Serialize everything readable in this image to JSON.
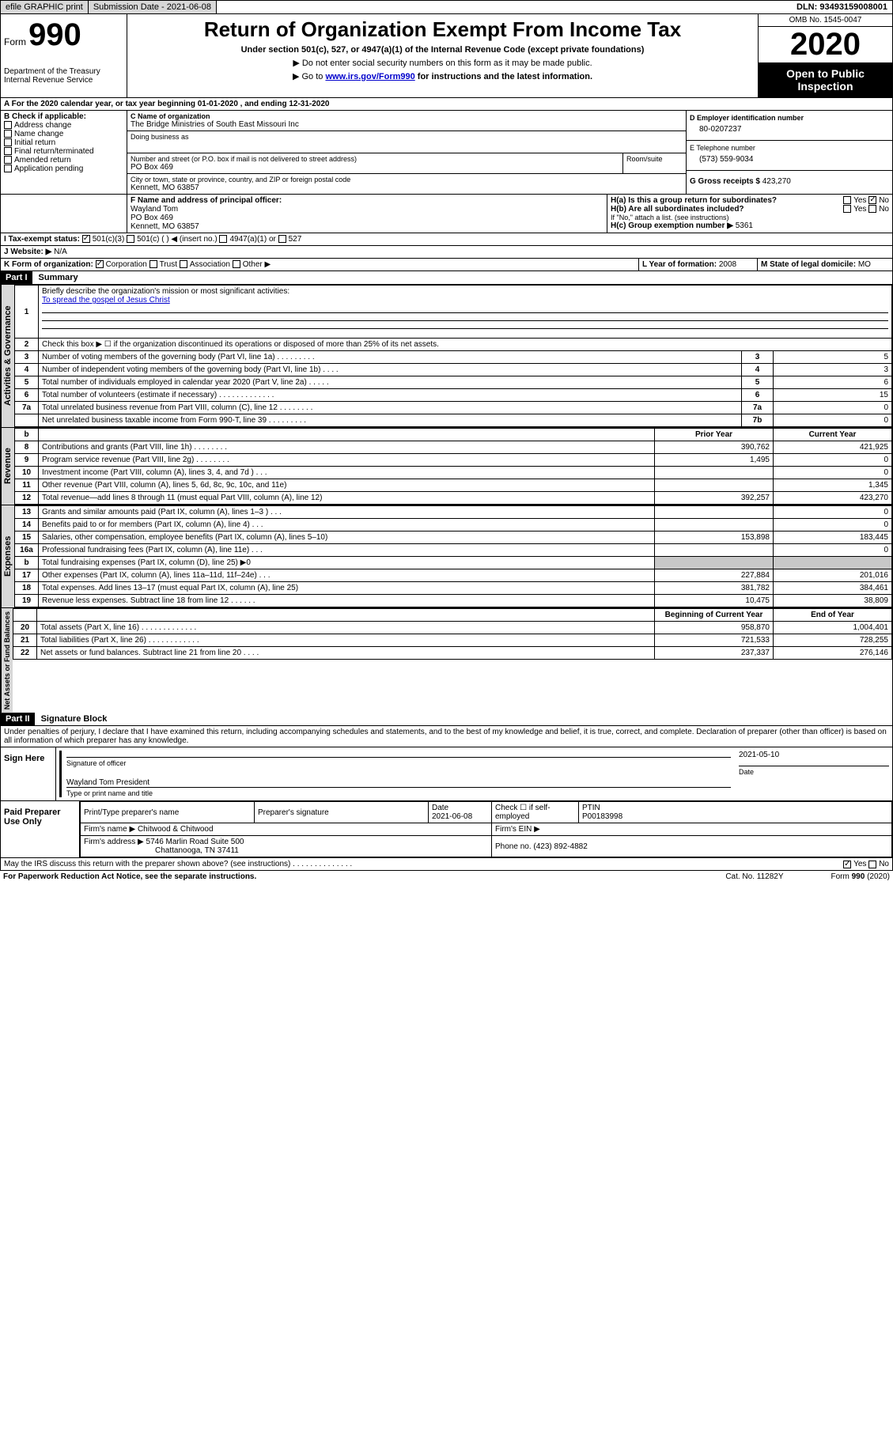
{
  "topbar": {
    "btn1": "efile GRAPHIC print",
    "btn2": "Submission Date - 2021-06-08",
    "dln": "DLN: 93493159008001"
  },
  "header": {
    "form_label": "Form",
    "form_number": "990",
    "dept1": "Department of the Treasury",
    "dept2": "Internal Revenue Service",
    "title": "Return of Organization Exempt From Income Tax",
    "subtitle": "Under section 501(c), 527, or 4947(a)(1) of the Internal Revenue Code (except private foundations)",
    "note1": "Do not enter social security numbers on this form as it may be made public.",
    "note2_pre": "Go to ",
    "note2_link": "www.irs.gov/Form990",
    "note2_post": " for instructions and the latest information.",
    "omb": "OMB No. 1545-0047",
    "year": "2020",
    "inspect": "Open to Public Inspection"
  },
  "periodA": "For the 2020 calendar year, or tax year beginning 01-01-2020    , and ending 12-31-2020",
  "boxB": {
    "label": "B Check if applicable:",
    "opts": [
      "Address change",
      "Name change",
      "Initial return",
      "Final return/terminated",
      "Amended return",
      "Application pending"
    ]
  },
  "boxC": {
    "label": "C Name of organization",
    "name": "The Bridge Ministries of South East Missouri Inc",
    "dba_label": "Doing business as",
    "addr_label": "Number and street (or P.O. box if mail is not delivered to street address)",
    "room_label": "Room/suite",
    "addr": "PO Box 469",
    "city_label": "City or town, state or province, country, and ZIP or foreign postal code",
    "city": "Kennett, MO  63857"
  },
  "boxD": {
    "label": "D Employer identification number",
    "value": "80-0207237"
  },
  "boxE": {
    "label": "E Telephone number",
    "value": "(573) 559-9034"
  },
  "boxG": {
    "label": "G Gross receipts $",
    "value": "423,270"
  },
  "boxF": {
    "label": "F  Name and address of principal officer:",
    "name": "Wayland Tom",
    "addr": "PO Box 469",
    "city": "Kennett, MO  63857"
  },
  "boxH": {
    "a_label": "H(a)  Is this a group return for subordinates?",
    "a_yes": "Yes",
    "a_no": "No",
    "b_label": "H(b)  Are all subordinates included?",
    "b_note": "If \"No,\" attach a list. (see instructions)",
    "c_label": "H(c)  Group exemption number ▶",
    "c_value": "5361"
  },
  "boxI": {
    "label": "I  Tax-exempt status:",
    "o1": "501(c)(3)",
    "o2": "501(c) (  ) ◀ (insert no.)",
    "o3": "4947(a)(1) or",
    "o4": "527"
  },
  "boxJ": {
    "label": "J   Website: ▶",
    "value": "N/A"
  },
  "boxK": {
    "label": "K Form of organization:",
    "o1": "Corporation",
    "o2": "Trust",
    "o3": "Association",
    "o4": "Other ▶"
  },
  "boxL": {
    "label": "L Year of formation:",
    "value": "2008"
  },
  "boxM": {
    "label": "M State of legal domicile:",
    "value": "MO"
  },
  "partI": {
    "num": "Part I",
    "title": "Summary"
  },
  "summary": {
    "q1": "Briefly describe the organization's mission or most significant activities:",
    "mission": "To spread the gospel of Jesus Christ",
    "q2": "Check this box ▶ ☐  if the organization discontinued its operations or disposed of more than 25% of its net assets.",
    "rows": [
      {
        "n": "3",
        "t": "Number of voting members of the governing body (Part VI, line 1a)  .   .   .   .   .   .   .   .   .",
        "r": "3",
        "v": "5"
      },
      {
        "n": "4",
        "t": "Number of independent voting members of the governing body (Part VI, line 1b)   .   .   .   .",
        "r": "4",
        "v": "3"
      },
      {
        "n": "5",
        "t": "Total number of individuals employed in calendar year 2020 (Part V, line 2a)   .   .   .   .   .",
        "r": "5",
        "v": "6"
      },
      {
        "n": "6",
        "t": "Total number of volunteers (estimate if necessary)   .   .   .   .   .   .   .   .   .   .   .   .   .",
        "r": "6",
        "v": "15"
      },
      {
        "n": "7a",
        "t": "Total unrelated business revenue from Part VIII, column (C), line 12   .   .   .   .   .   .   .   .",
        "r": "7a",
        "v": "0"
      },
      {
        "n": "",
        "t": "Net unrelated business taxable income from Form 990-T, line 39   .   .   .   .   .   .   .   .   .",
        "r": "7b",
        "v": "0"
      }
    ],
    "col_prior": "Prior Year",
    "col_current": "Current Year",
    "col_begin": "Beginning of Current Year",
    "col_end": "End of Year",
    "rev": [
      {
        "n": "8",
        "t": "Contributions and grants (Part VIII, line 1h)   .   .   .   .   .   .   .   .",
        "p": "390,762",
        "c": "421,925"
      },
      {
        "n": "9",
        "t": "Program service revenue (Part VIII, line 2g)   .   .   .   .   .   .   .   .",
        "p": "1,495",
        "c": "0"
      },
      {
        "n": "10",
        "t": "Investment income (Part VIII, column (A), lines 3, 4, and 7d )   .   .   .",
        "p": "",
        "c": "0"
      },
      {
        "n": "11",
        "t": "Other revenue (Part VIII, column (A), lines 5, 6d, 8c, 9c, 10c, and 11e)",
        "p": "",
        "c": "1,345"
      },
      {
        "n": "12",
        "t": "Total revenue—add lines 8 through 11 (must equal Part VIII, column (A), line 12)",
        "p": "392,257",
        "c": "423,270"
      }
    ],
    "exp": [
      {
        "n": "13",
        "t": "Grants and similar amounts paid (Part IX, column (A), lines 1–3 )   .   .   .",
        "p": "",
        "c": "0"
      },
      {
        "n": "14",
        "t": "Benefits paid to or for members (Part IX, column (A), line 4)   .   .   .",
        "p": "",
        "c": "0"
      },
      {
        "n": "15",
        "t": "Salaries, other compensation, employee benefits (Part IX, column (A), lines 5–10)",
        "p": "153,898",
        "c": "183,445"
      },
      {
        "n": "16a",
        "t": "Professional fundraising fees (Part IX, column (A), line 11e)   .   .   .",
        "p": "",
        "c": "0"
      },
      {
        "n": "b",
        "t": "Total fundraising expenses (Part IX, column (D), line 25) ▶0",
        "p": "shade",
        "c": "shade"
      },
      {
        "n": "17",
        "t": "Other expenses (Part IX, column (A), lines 11a–11d, 11f–24e)   .   .   .",
        "p": "227,884",
        "c": "201,016"
      },
      {
        "n": "18",
        "t": "Total expenses. Add lines 13–17 (must equal Part IX, column (A), line 25)",
        "p": "381,782",
        "c": "384,461"
      },
      {
        "n": "19",
        "t": "Revenue less expenses. Subtract line 18 from line 12   .   .   .   .   .   .",
        "p": "10,475",
        "c": "38,809"
      }
    ],
    "net": [
      {
        "n": "20",
        "t": "Total assets (Part X, line 16)   .   .   .   .   .   .   .   .   .   .   .   .   .",
        "p": "958,870",
        "c": "1,004,401"
      },
      {
        "n": "21",
        "t": "Total liabilities (Part X, line 26)   .   .   .   .   .   .   .   .   .   .   .   .",
        "p": "721,533",
        "c": "728,255"
      },
      {
        "n": "22",
        "t": "Net assets or fund balances. Subtract line 21 from line 20   .   .   .   .",
        "p": "237,337",
        "c": "276,146"
      }
    ]
  },
  "vlabels": {
    "gov": "Activities & Governance",
    "rev": "Revenue",
    "exp": "Expenses",
    "net": "Net Assets or Fund Balances"
  },
  "partII": {
    "num": "Part II",
    "title": "Signature Block"
  },
  "perjury": "Under penalties of perjury, I declare that I have examined this return, including accompanying schedules and statements, and to the best of my knowledge and belief, it is true, correct, and complete. Declaration of preparer (other than officer) is based on all information of which preparer has any knowledge.",
  "sign": {
    "here": "Sign Here",
    "sig_label": "Signature of officer",
    "date_label": "Date",
    "date_value": "2021-05-10",
    "name": "Wayland Tom President",
    "name_label": "Type or print name and title"
  },
  "prep": {
    "label": "Paid Preparer Use Only",
    "c1": "Print/Type preparer's name",
    "c2": "Preparer's signature",
    "c3": "Date",
    "c3v": "2021-06-08",
    "c4": "Check ☐ if self-employed",
    "c5": "PTIN",
    "c5v": "P00183998",
    "firm_label": "Firm's name     ▶",
    "firm": "Chitwood & Chitwood",
    "ein_label": "Firm's EIN ▶",
    "addr_label": "Firm's address ▶",
    "addr1": "5746 Marlin Road Suite 500",
    "addr2": "Chattanooga, TN  37411",
    "phone_label": "Phone no.",
    "phone": "(423) 892-4882"
  },
  "discuss": "May the IRS discuss this return with the preparer shown above? (see instructions)   .   .   .   .   .   .   .   .   .   .   .   .   .   .",
  "discuss_yes": "Yes",
  "discuss_no": "No",
  "footer": {
    "pra": "For Paperwork Reduction Act Notice, see the separate instructions.",
    "cat": "Cat. No. 11282Y",
    "form": "Form 990 (2020)"
  }
}
